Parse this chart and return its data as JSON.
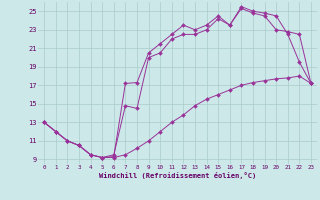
{
  "xlabel": "Windchill (Refroidissement éolien,°C)",
  "background_color": "#cce8e8",
  "grid_color": "#aacccc",
  "line_color": "#993399",
  "xlim": [
    -0.5,
    23.5
  ],
  "ylim": [
    8.5,
    26
  ],
  "yticks": [
    9,
    11,
    13,
    15,
    17,
    19,
    21,
    23,
    25
  ],
  "xticks": [
    0,
    1,
    2,
    3,
    4,
    5,
    6,
    7,
    8,
    9,
    10,
    11,
    12,
    13,
    14,
    15,
    16,
    17,
    18,
    19,
    20,
    21,
    22,
    23
  ],
  "line1_x": [
    0,
    1,
    2,
    3,
    4,
    5,
    6,
    7,
    8,
    9,
    10,
    11,
    12,
    13,
    14,
    15,
    16,
    17,
    18,
    19,
    20,
    21,
    22,
    23
  ],
  "line1_y": [
    13,
    12,
    11,
    10.5,
    9.5,
    9.2,
    9.3,
    17.2,
    17.3,
    20.5,
    21.5,
    22.5,
    23.5,
    23.0,
    23.5,
    24.5,
    23.5,
    25.5,
    25.0,
    24.8,
    24.5,
    22.5,
    19.5,
    17.2
  ],
  "line2_x": [
    0,
    1,
    2,
    3,
    4,
    5,
    6,
    7,
    8,
    9,
    10,
    11,
    12,
    13,
    14,
    15,
    16,
    17,
    18,
    19,
    20,
    21,
    22,
    23
  ],
  "line2_y": [
    13,
    12,
    11,
    10.5,
    9.5,
    9.2,
    9.5,
    14.8,
    14.5,
    20.0,
    20.5,
    22.0,
    22.5,
    22.5,
    23.0,
    24.2,
    23.5,
    25.3,
    24.8,
    24.5,
    23.0,
    22.8,
    22.5,
    17.2
  ],
  "line3_x": [
    0,
    1,
    2,
    3,
    4,
    5,
    6,
    7,
    8,
    9,
    10,
    11,
    12,
    13,
    14,
    15,
    16,
    17,
    18,
    19,
    20,
    21,
    22,
    23
  ],
  "line3_y": [
    13,
    12,
    11,
    10.5,
    9.5,
    9.2,
    9.2,
    9.5,
    10.2,
    11.0,
    12.0,
    13.0,
    13.8,
    14.8,
    15.5,
    16.0,
    16.5,
    17.0,
    17.3,
    17.5,
    17.7,
    17.8,
    18.0,
    17.2
  ]
}
